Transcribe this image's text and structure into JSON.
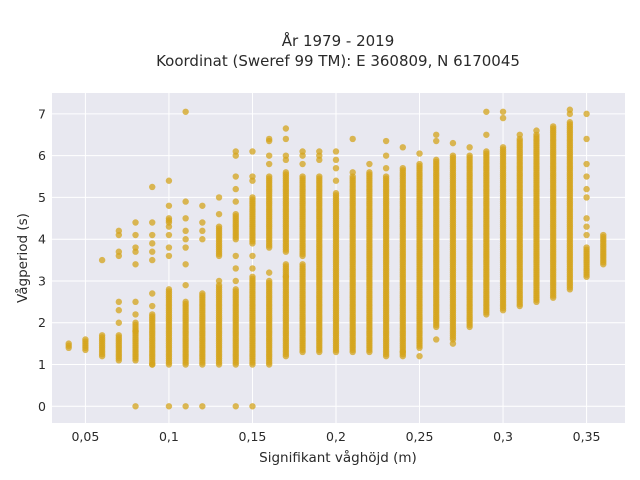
{
  "chart_data": {
    "type": "scatter",
    "title_line1": "År 1979 - 2019",
    "title_line2": "Koordinat (Sweref 99 TM): E 360809, N 6170045",
    "xlabel": "Signifikant våghöjd (m)",
    "ylabel": "Vågperiod (s)",
    "xlim": [
      0.03,
      0.373
    ],
    "ylim": [
      -0.4,
      7.5
    ],
    "x_ticks": [
      0.05,
      0.1,
      0.15,
      0.2,
      0.25,
      0.3,
      0.35
    ],
    "x_tick_labels": [
      "0,05",
      "0,1",
      "0,15",
      "0,2",
      "0,25",
      "0,3",
      "0,35"
    ],
    "y_ticks": [
      0,
      1,
      2,
      3,
      4,
      5,
      6,
      7
    ],
    "y_tick_labels": [
      "0",
      "1",
      "2",
      "3",
      "4",
      "5",
      "6",
      "7"
    ],
    "grid": true,
    "marker_color": "#D4A41C",
    "background_color": "#E8E8F0",
    "columns": [
      {
        "x": 0.04,
        "dense": [
          [
            1.4,
            1.5
          ]
        ],
        "scatter": []
      },
      {
        "x": 0.05,
        "dense": [
          [
            1.35,
            1.6
          ]
        ],
        "scatter": []
      },
      {
        "x": 0.06,
        "dense": [
          [
            1.2,
            1.7
          ]
        ],
        "scatter": [
          3.5
        ]
      },
      {
        "x": 0.07,
        "dense": [
          [
            1.1,
            1.7
          ]
        ],
        "scatter": [
          2.0,
          2.3,
          2.5,
          3.6,
          3.7,
          4.1,
          4.2
        ]
      },
      {
        "x": 0.08,
        "dense": [
          [
            1.1,
            2.0
          ]
        ],
        "scatter": [
          0.0,
          1.8,
          2.2,
          2.5,
          3.4,
          3.7,
          3.8,
          4.1,
          4.4
        ]
      },
      {
        "x": 0.09,
        "dense": [
          [
            1.0,
            2.2
          ]
        ],
        "scatter": [
          1.0,
          2.4,
          2.7,
          3.5,
          3.7,
          3.9,
          4.1,
          4.4,
          5.25
        ]
      },
      {
        "x": 0.1,
        "dense": [
          [
            1.0,
            2.8
          ],
          [
            4.4,
            4.5
          ]
        ],
        "scatter": [
          0.0,
          3.6,
          3.8,
          4.1,
          4.3,
          4.8,
          5.4
        ]
      },
      {
        "x": 0.11,
        "dense": [
          [
            1.0,
            2.5
          ]
        ],
        "scatter": [
          0.0,
          2.9,
          3.4,
          3.8,
          4.0,
          4.2,
          4.5,
          4.9,
          7.05
        ]
      },
      {
        "x": 0.12,
        "dense": [
          [
            1.0,
            2.7
          ]
        ],
        "scatter": [
          0.0,
          4.0,
          4.2,
          4.4,
          4.8
        ]
      },
      {
        "x": 0.13,
        "dense": [
          [
            1.0,
            2.9
          ],
          [
            3.6,
            4.3
          ]
        ],
        "scatter": [
          3.0,
          4.6,
          5.0
        ]
      },
      {
        "x": 0.14,
        "dense": [
          [
            1.0,
            2.8
          ],
          [
            4.0,
            4.6
          ]
        ],
        "scatter": [
          0.0,
          3.0,
          3.3,
          3.6,
          4.9,
          5.2,
          5.5,
          6.0,
          6.1
        ]
      },
      {
        "x": 0.15,
        "dense": [
          [
            1.0,
            3.1
          ],
          [
            3.9,
            5.0
          ]
        ],
        "scatter": [
          0.0,
          3.3,
          3.6,
          5.4,
          5.5,
          6.1
        ]
      },
      {
        "x": 0.16,
        "dense": [
          [
            1.0,
            3.0
          ],
          [
            3.8,
            5.5
          ]
        ],
        "scatter": [
          3.2,
          5.8,
          6.0,
          6.35,
          6.4
        ]
      },
      {
        "x": 0.17,
        "dense": [
          [
            1.2,
            3.4
          ],
          [
            3.7,
            5.6
          ]
        ],
        "scatter": [
          3.1,
          5.9,
          6.0,
          6.4,
          6.65
        ]
      },
      {
        "x": 0.18,
        "dense": [
          [
            1.3,
            3.4
          ],
          [
            3.6,
            5.5
          ]
        ],
        "scatter": [
          5.8,
          6.0,
          6.1
        ]
      },
      {
        "x": 0.19,
        "dense": [
          [
            1.3,
            5.5
          ]
        ],
        "scatter": [
          5.9,
          6.0,
          6.1
        ]
      },
      {
        "x": 0.2,
        "dense": [
          [
            1.3,
            5.1
          ]
        ],
        "scatter": [
          5.4,
          5.7,
          5.9,
          6.1
        ]
      },
      {
        "x": 0.21,
        "dense": [
          [
            1.3,
            5.5
          ]
        ],
        "scatter": [
          5.6,
          6.4
        ]
      },
      {
        "x": 0.22,
        "dense": [
          [
            1.3,
            5.6
          ]
        ],
        "scatter": [
          5.8
        ]
      },
      {
        "x": 0.23,
        "dense": [
          [
            1.2,
            5.5
          ]
        ],
        "scatter": [
          5.7,
          6.0,
          6.35
        ]
      },
      {
        "x": 0.24,
        "dense": [
          [
            1.2,
            5.7
          ]
        ],
        "scatter": [
          1.3,
          6.2
        ]
      },
      {
        "x": 0.25,
        "dense": [
          [
            1.4,
            5.8
          ]
        ],
        "scatter": [
          1.2,
          6.05
        ]
      },
      {
        "x": 0.26,
        "dense": [
          [
            1.9,
            5.9
          ]
        ],
        "scatter": [
          1.6,
          6.35,
          6.5
        ]
      },
      {
        "x": 0.27,
        "dense": [
          [
            1.6,
            6.0
          ]
        ],
        "scatter": [
          1.5,
          6.3
        ]
      },
      {
        "x": 0.28,
        "dense": [
          [
            1.9,
            6.0
          ]
        ],
        "scatter": [
          6.2
        ]
      },
      {
        "x": 0.29,
        "dense": [
          [
            2.2,
            6.1
          ]
        ],
        "scatter": [
          6.5,
          7.05
        ]
      },
      {
        "x": 0.3,
        "dense": [
          [
            2.3,
            6.2
          ]
        ],
        "scatter": [
          6.9,
          7.05
        ]
      },
      {
        "x": 0.31,
        "dense": [
          [
            2.4,
            6.4
          ]
        ],
        "scatter": [
          6.5
        ]
      },
      {
        "x": 0.32,
        "dense": [
          [
            2.5,
            6.5
          ]
        ],
        "scatter": [
          6.6
        ]
      },
      {
        "x": 0.33,
        "dense": [
          [
            2.6,
            6.7
          ]
        ],
        "scatter": []
      },
      {
        "x": 0.34,
        "dense": [
          [
            2.8,
            6.8
          ]
        ],
        "scatter": [
          7.0,
          7.1
        ]
      },
      {
        "x": 0.35,
        "dense": [
          [
            3.1,
            3.8
          ]
        ],
        "scatter": [
          4.1,
          4.3,
          4.5,
          5.0,
          5.2,
          5.5,
          5.8,
          6.4,
          7.0
        ]
      },
      {
        "x": 0.36,
        "dense": [
          [
            3.4,
            4.1
          ]
        ],
        "scatter": []
      }
    ]
  }
}
